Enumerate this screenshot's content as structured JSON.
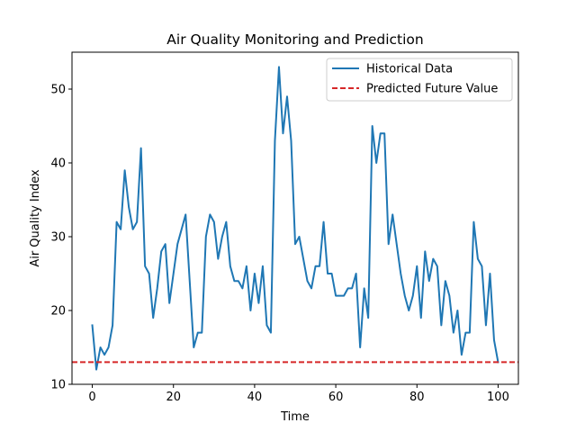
{
  "chart_data": {
    "type": "line",
    "title": "Air Quality Monitoring and Prediction",
    "xlabel": "Time",
    "ylabel": "Air Quality Index",
    "xlim": [
      -5,
      105
    ],
    "ylim": [
      10,
      55
    ],
    "xticks": [
      0,
      20,
      40,
      60,
      80,
      100
    ],
    "yticks": [
      10,
      20,
      30,
      40,
      50
    ],
    "grid": false,
    "legend_position": "upper right",
    "series": [
      {
        "name": "Historical Data",
        "color": "#1f77b4",
        "style": "solid",
        "x": [
          0,
          1,
          2,
          3,
          4,
          5,
          6,
          7,
          8,
          9,
          10,
          11,
          12,
          13,
          14,
          15,
          16,
          17,
          18,
          19,
          20,
          21,
          22,
          23,
          24,
          25,
          26,
          27,
          28,
          29,
          30,
          31,
          32,
          33,
          34,
          35,
          36,
          37,
          38,
          39,
          40,
          41,
          42,
          43,
          44,
          45,
          46,
          47,
          48,
          49,
          50,
          51,
          52,
          53,
          54,
          55,
          56,
          57,
          58,
          59,
          60,
          61,
          62,
          63,
          64,
          65,
          66,
          67,
          68,
          69,
          70,
          71,
          72,
          73,
          74,
          75,
          76,
          77,
          78,
          79,
          80,
          81,
          82,
          83,
          84,
          85,
          86,
          87,
          88,
          89,
          90,
          91,
          92,
          93,
          94,
          95,
          96,
          97,
          98,
          99,
          100
        ],
        "y": [
          18,
          12,
          15,
          14,
          15,
          18,
          32,
          31,
          39,
          34,
          31,
          32,
          42,
          26,
          25,
          19,
          23,
          28,
          29,
          21,
          25,
          29,
          31,
          33,
          24,
          15,
          17,
          17,
          30,
          33,
          32,
          27,
          30,
          32,
          26,
          24,
          24,
          23,
          26,
          20,
          25,
          21,
          26,
          18,
          17,
          43,
          53,
          44,
          49,
          43,
          29,
          30,
          27,
          24,
          23,
          26,
          26,
          32,
          25,
          25,
          22,
          22,
          22,
          23,
          23,
          25,
          15,
          23,
          19,
          45,
          40,
          44,
          44,
          29,
          33,
          29,
          25,
          22,
          20,
          22,
          26,
          19,
          28,
          24,
          27,
          26,
          18,
          24,
          22,
          17,
          20,
          14,
          17,
          17,
          32,
          27,
          26,
          18,
          25,
          16,
          13
        ]
      },
      {
        "name": "Predicted Future Value",
        "color": "#d62728",
        "style": "dashed",
        "y_constant": 13
      }
    ]
  }
}
